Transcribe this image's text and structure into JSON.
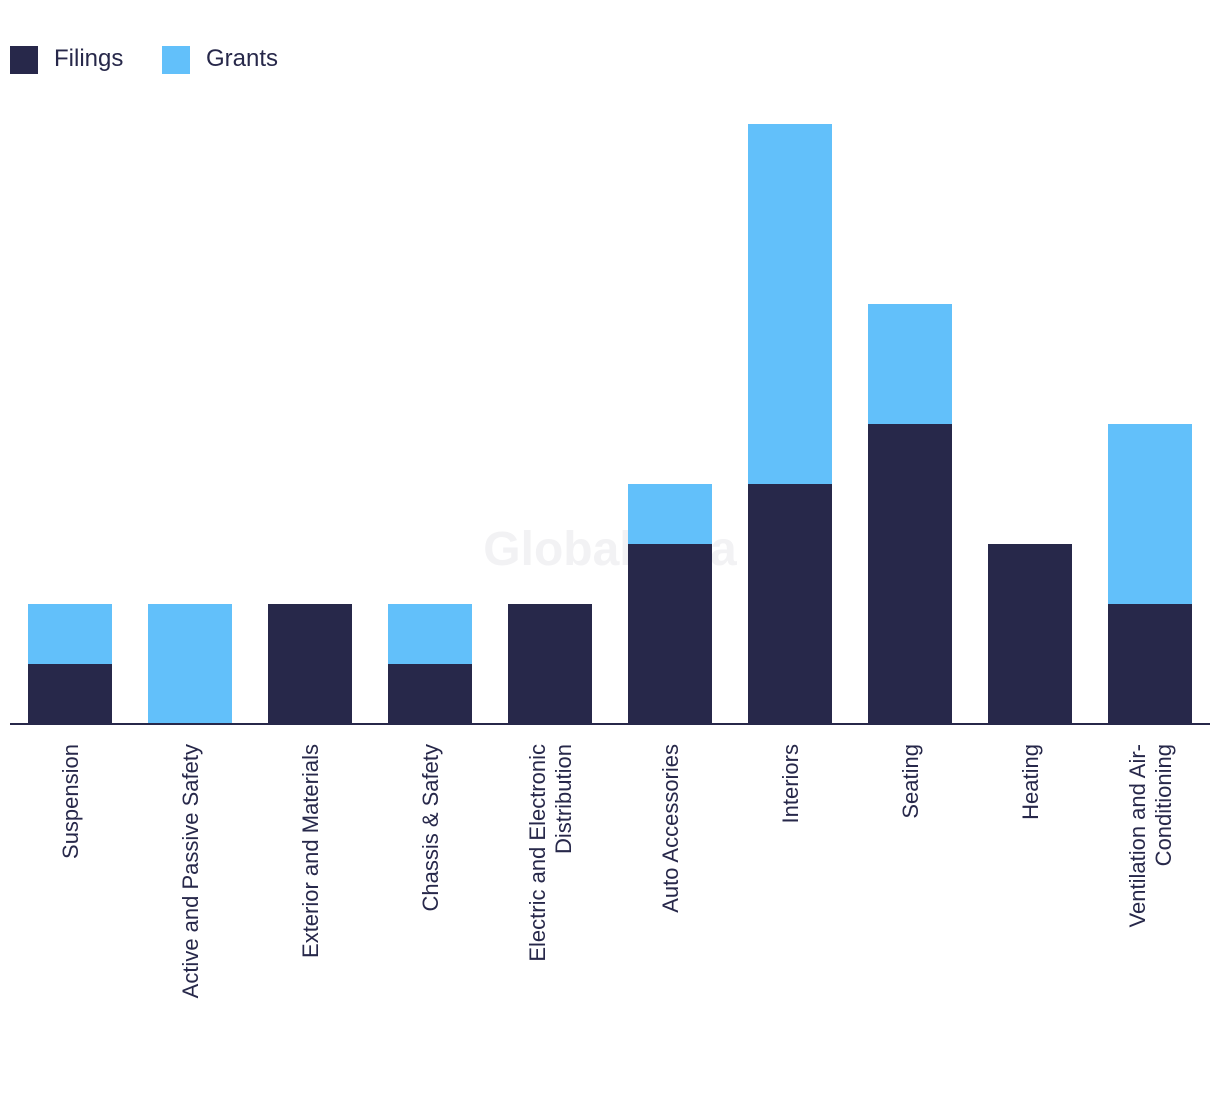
{
  "chart_data": {
    "type": "bar",
    "stacked": true,
    "title": "",
    "xlabel": "",
    "ylabel": "",
    "ylim": [
      0,
      10
    ],
    "grid": false,
    "legend_position": "top-left",
    "watermark": "GlobalData",
    "categories": [
      [
        "Suspension"
      ],
      [
        "Active and Passive Safety"
      ],
      [
        "Exterior and Materials"
      ],
      [
        "Chassis & Safety"
      ],
      [
        "Electric and Electronic",
        "Distribution"
      ],
      [
        "Auto Accessories"
      ],
      [
        "Interiors"
      ],
      [
        "Seating"
      ],
      [
        "Heating"
      ],
      [
        "Ventilation and Air-",
        "Conditioning"
      ]
    ],
    "series": [
      {
        "name": "Filings",
        "color": "#27284a",
        "values": [
          1,
          0,
          2,
          1,
          2,
          3,
          4,
          5,
          3,
          2
        ]
      },
      {
        "name": "Grants",
        "color": "#62c0fa",
        "values": [
          1,
          2,
          0,
          1,
          0,
          1,
          6,
          2,
          0,
          3
        ]
      }
    ]
  }
}
